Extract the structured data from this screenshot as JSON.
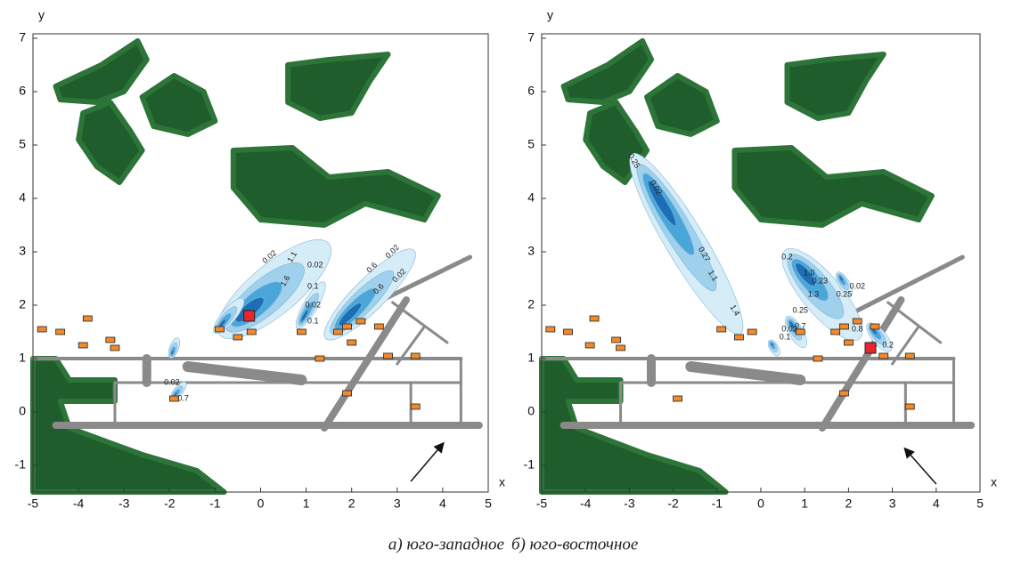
{
  "axis_labels": {
    "x": "x",
    "y": "y"
  },
  "panels": [
    {
      "xlim": [
        -5,
        5
      ],
      "ylim": [
        -1.5,
        7
      ],
      "xticks": [
        -5,
        -4,
        -3,
        -2,
        -1,
        0,
        1,
        2,
        3,
        4,
        5
      ],
      "yticks": [
        -1,
        0,
        1,
        2,
        3,
        4,
        5,
        6,
        7
      ],
      "contour_labels": [
        "0.02",
        "1.1",
        "1.6",
        "0.02",
        "0.1",
        "0.02",
        "0.1",
        "0.02",
        "0.6",
        "0.02",
        "0.6",
        "0.02",
        "0.7"
      ]
    },
    {
      "xlim": [
        -5,
        5
      ],
      "ylim": [
        -1.5,
        7
      ],
      "xticks": [
        -5,
        -4,
        -3,
        -2,
        -1,
        0,
        1,
        2,
        3,
        4,
        5
      ],
      "yticks": [
        -1,
        0,
        1,
        2,
        3,
        4,
        5,
        6,
        7
      ],
      "contour_labels": [
        "0.25",
        "0.02",
        "0.27",
        "1.1",
        "1.4",
        "0.2",
        "1.0",
        "0.23",
        "1.3",
        "0.25",
        "0.02",
        "0.25",
        "0.7",
        "0.02",
        "0.1",
        "0.8",
        "0.2"
      ]
    }
  ],
  "caption": [
    "а) юго-западное",
    "б) юго-восточное"
  ]
}
